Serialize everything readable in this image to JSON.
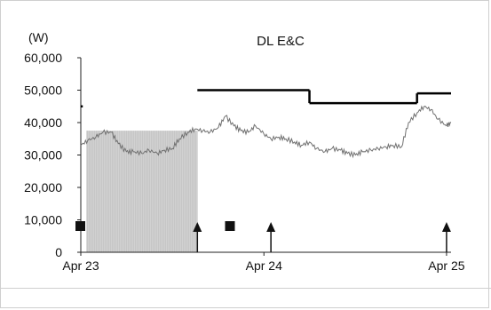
{
  "chart_data": {
    "type": "line",
    "title": "DL E&C",
    "ylabel": "(W)",
    "xlabel": "",
    "ylim": [
      0,
      60000
    ],
    "yticks": [
      "0",
      "10,000",
      "20,000",
      "30,000",
      "40,000",
      "50,000",
      "60,000"
    ],
    "x_range": [
      "2023-04-01",
      "2025-04-10"
    ],
    "xticks": [
      {
        "label": "Apr 23",
        "date": "2023-04-01"
      },
      {
        "label": "Apr 24",
        "date": "2024-04-01"
      },
      {
        "label": "Apr 25",
        "date": "2025-04-01"
      }
    ],
    "series": [
      {
        "role": "price",
        "color": "#707070",
        "points": [
          [
            "2023-04-01",
            33000
          ],
          [
            "2023-04-15",
            34500
          ],
          [
            "2023-05-01",
            35500
          ],
          [
            "2023-05-15",
            37000
          ],
          [
            "2023-06-01",
            37000
          ],
          [
            "2023-06-15",
            33500
          ],
          [
            "2023-07-01",
            31000
          ],
          [
            "2023-07-15",
            31000
          ],
          [
            "2023-08-01",
            30500
          ],
          [
            "2023-08-15",
            31500
          ],
          [
            "2023-09-01",
            30500
          ],
          [
            "2023-09-15",
            31500
          ],
          [
            "2023-10-01",
            32000
          ],
          [
            "2023-10-15",
            35000
          ],
          [
            "2023-11-01",
            37000
          ],
          [
            "2023-11-15",
            38000
          ],
          [
            "2023-12-01",
            37500
          ],
          [
            "2023-12-15",
            37000
          ],
          [
            "2024-01-01",
            38500
          ],
          [
            "2024-01-15",
            42000
          ],
          [
            "2024-02-01",
            39000
          ],
          [
            "2024-02-15",
            37500
          ],
          [
            "2024-03-01",
            37000
          ],
          [
            "2024-03-15",
            39000
          ],
          [
            "2024-04-01",
            36500
          ],
          [
            "2024-04-15",
            35000
          ],
          [
            "2024-05-01",
            35500
          ],
          [
            "2024-05-15",
            35000
          ],
          [
            "2024-06-01",
            34000
          ],
          [
            "2024-06-15",
            33000
          ],
          [
            "2024-07-01",
            34000
          ],
          [
            "2024-07-15",
            32000
          ],
          [
            "2024-08-01",
            31000
          ],
          [
            "2024-08-15",
            32000
          ],
          [
            "2024-09-01",
            31500
          ],
          [
            "2024-09-15",
            30500
          ],
          [
            "2024-10-01",
            30000
          ],
          [
            "2024-10-15",
            31000
          ],
          [
            "2024-11-01",
            31500
          ],
          [
            "2024-11-15",
            32000
          ],
          [
            "2024-12-01",
            32500
          ],
          [
            "2024-12-15",
            33000
          ],
          [
            "2025-01-01",
            32500
          ],
          [
            "2025-01-15",
            40000
          ],
          [
            "2025-02-01",
            43000
          ],
          [
            "2025-02-15",
            45000
          ],
          [
            "2025-03-01",
            44000
          ],
          [
            "2025-03-15",
            41000
          ],
          [
            "2025-04-01",
            39000
          ],
          [
            "2025-04-10",
            40000
          ]
        ]
      },
      {
        "role": "target_price",
        "color": "#000000",
        "segments": [
          {
            "from": "2023-04-01",
            "to": "2023-04-05",
            "value": 45000
          },
          {
            "from": "2023-11-20",
            "to": "2024-07-01",
            "value": 50000
          },
          {
            "from": "2024-07-01",
            "to": "2025-02-01",
            "value": 46000
          },
          {
            "from": "2025-02-01",
            "to": "2025-04-10",
            "value": 49000
          }
        ]
      }
    ],
    "shaded_period": {
      "from": "2023-04-12",
      "to": "2023-11-20",
      "color": "#d4d4d4"
    },
    "markers": [
      {
        "type": "square",
        "date": "2023-04-01"
      },
      {
        "type": "arrow-up",
        "date": "2023-11-20"
      },
      {
        "type": "square",
        "date": "2024-01-25"
      },
      {
        "type": "arrow-up",
        "date": "2024-04-15"
      },
      {
        "type": "arrow-up",
        "date": "2025-04-01"
      }
    ]
  }
}
